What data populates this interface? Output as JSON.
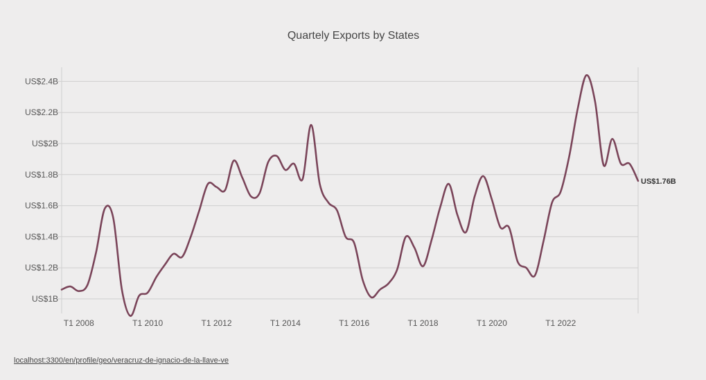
{
  "chart_data": {
    "type": "line",
    "title": "Quartely Exports by States",
    "xlabel": "",
    "ylabel": "",
    "ylim": [
      0.9,
      2.5
    ],
    "y_ticks": [
      1.0,
      1.2,
      1.4,
      1.6,
      1.8,
      2.0,
      2.2,
      2.4
    ],
    "y_tick_labels": [
      "US$1B",
      "US$1.2B",
      "US$1.4B",
      "US$1.6B",
      "US$1.8B",
      "US$2B",
      "US$2.2B",
      "US$2.4B"
    ],
    "x_start_year": 2007.5,
    "x_end_year": 2024.25,
    "x_tick_labels": [
      "T1 2008",
      "T1 2010",
      "T1 2012",
      "T1 2014",
      "T1 2016",
      "T1 2018",
      "T1 2020",
      "T1 2022"
    ],
    "x_tick_years": [
      2008,
      2010,
      2012,
      2014,
      2016,
      2018,
      2020,
      2022
    ],
    "series": [
      {
        "name": "Exports",
        "color": "#7a4459",
        "end_label": "US$1.76B",
        "values": [
          1.06,
          1.08,
          1.05,
          1.09,
          1.3,
          1.58,
          1.52,
          1.06,
          0.89,
          1.02,
          1.04,
          1.14,
          1.22,
          1.29,
          1.27,
          1.4,
          1.57,
          1.74,
          1.72,
          1.7,
          1.89,
          1.78,
          1.66,
          1.68,
          1.88,
          1.92,
          1.83,
          1.87,
          1.77,
          2.12,
          1.74,
          1.62,
          1.57,
          1.4,
          1.36,
          1.12,
          1.01,
          1.06,
          1.1,
          1.19,
          1.4,
          1.33,
          1.21,
          1.38,
          1.59,
          1.74,
          1.54,
          1.43,
          1.66,
          1.79,
          1.64,
          1.46,
          1.46,
          1.24,
          1.2,
          1.15,
          1.37,
          1.62,
          1.69,
          1.92,
          2.23,
          2.44,
          2.27,
          1.86,
          2.03,
          1.87,
          1.87,
          1.76
        ]
      }
    ]
  },
  "footer": {
    "url": "localhost:3300/en/profile/geo/veracruz-de-ignacio-de-la-llave-ve"
  }
}
